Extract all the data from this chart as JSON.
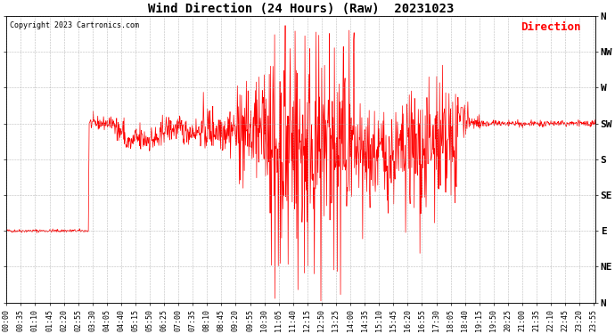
{
  "title": "Wind Direction (24 Hours) (Raw)  20231023",
  "copyright": "Copyright 2023 Cartronics.com",
  "legend_label": "Direction",
  "line_color": "red",
  "legend_color": "red",
  "background_color": "#ffffff",
  "grid_color": "#aaaaaa",
  "yticks_labels": [
    "N",
    "NW",
    "W",
    "SW",
    "S",
    "SE",
    "E",
    "NE",
    "N"
  ],
  "yticks_values": [
    360,
    315,
    270,
    225,
    180,
    135,
    90,
    45,
    0
  ],
  "ylim": [
    0,
    360
  ],
  "xlim_start": 0,
  "xlim_end": 1439,
  "total_minutes": 1440,
  "x_tick_interval_minutes": 35,
  "title_fontsize": 10,
  "axis_fontsize": 6,
  "copyright_fontsize": 6,
  "figwidth": 6.9,
  "figheight": 3.75,
  "dpi": 100
}
